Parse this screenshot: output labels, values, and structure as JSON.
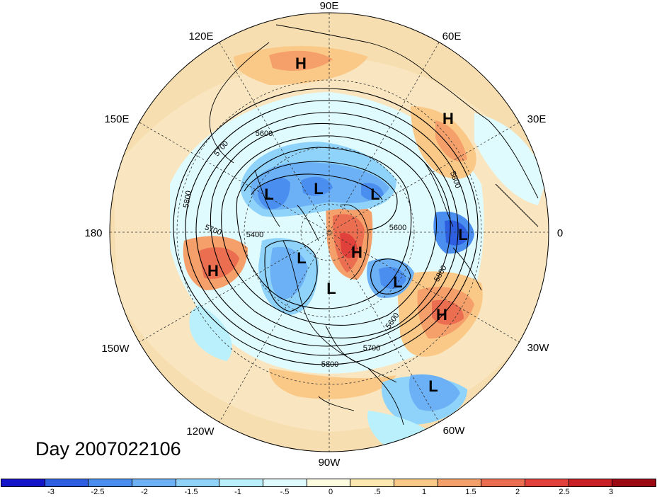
{
  "map": {
    "longitude_labels": {
      "e90": "90E",
      "e60": "60E",
      "e30": "30E",
      "zero": "0",
      "w30": "30W",
      "w60": "60W",
      "w90": "90W",
      "w120": "120W",
      "w150": "150W",
      "d180": "180",
      "e150": "150E",
      "e120": "120E"
    },
    "pressure_systems": [
      {
        "type": "H"
      },
      {
        "type": "H"
      },
      {
        "type": "L"
      },
      {
        "type": "L"
      },
      {
        "type": "L"
      },
      {
        "type": "L"
      },
      {
        "type": "H"
      },
      {
        "type": "L"
      },
      {
        "type": "L"
      },
      {
        "type": "L"
      },
      {
        "type": "H"
      },
      {
        "type": "H"
      },
      {
        "type": "L"
      }
    ],
    "contour_labels": [
      "5600",
      "5700",
      "5800",
      "5700",
      "5400",
      "5800",
      "5600",
      "5700",
      "5800",
      "5800",
      "5600"
    ],
    "colors": {
      "ocean_background": "#f6deb0",
      "land_lines": "#000000",
      "graticule": "#333333"
    }
  },
  "day_label": "Day 2007022106",
  "colorbar": {
    "colors": [
      "#1414c8",
      "#2e5fe0",
      "#4a8ff0",
      "#6cb1f5",
      "#8fd3fa",
      "#b9f0fc",
      "#e0fbfe",
      "#fefde0",
      "#fde8b0",
      "#fbc987",
      "#f5a06a",
      "#ec6e50",
      "#e2403a",
      "#c92026",
      "#9c0a14"
    ],
    "ticks": [
      "-3",
      "-2.5",
      "-2",
      "-1.5",
      "-1",
      "-.5",
      "0",
      ".5",
      "1",
      "1.5",
      "2",
      "2.5",
      "3"
    ]
  }
}
